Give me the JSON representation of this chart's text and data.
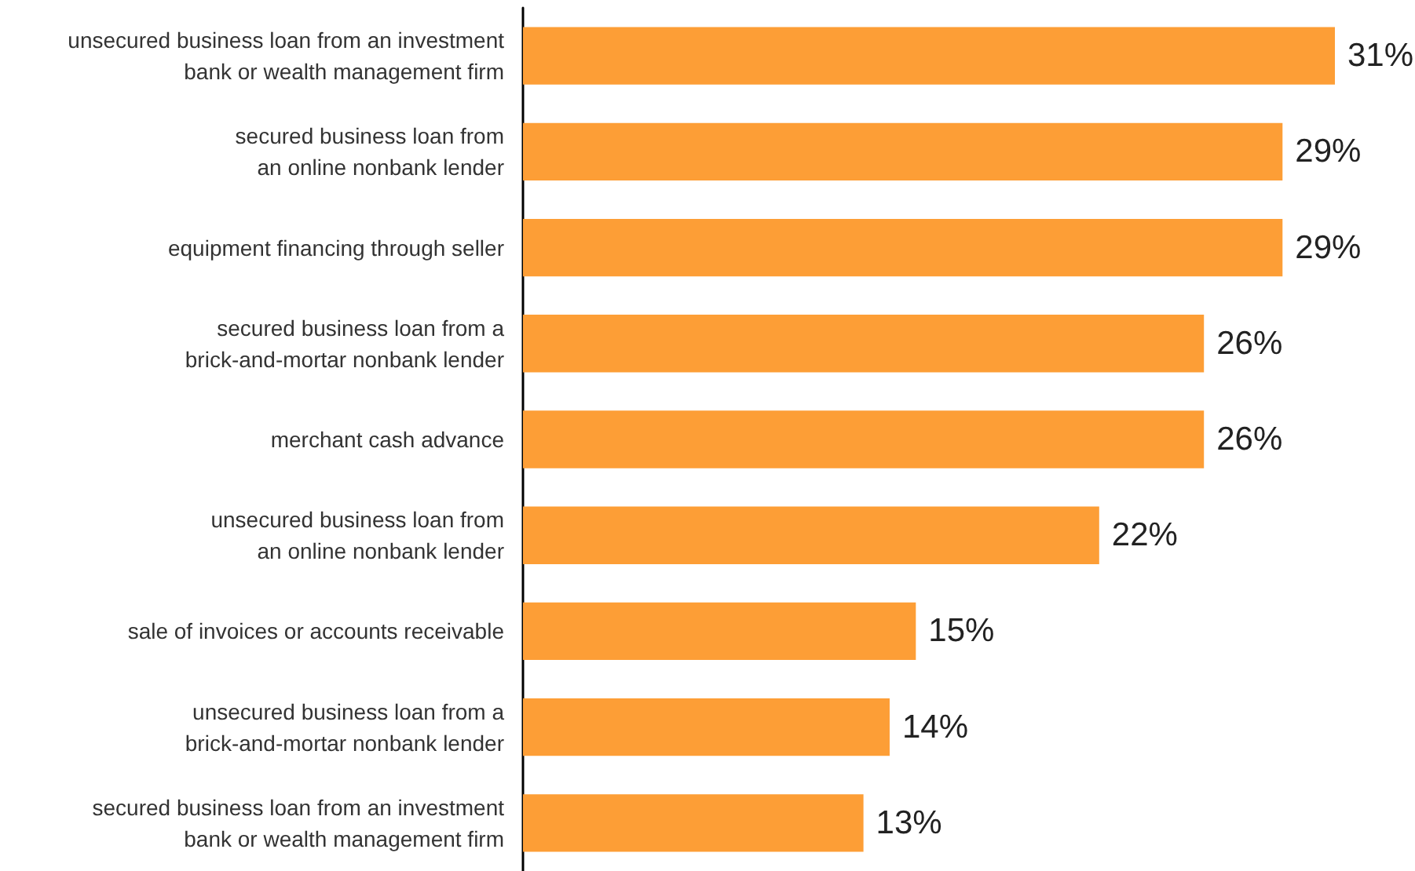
{
  "chart_data": {
    "type": "bar",
    "orientation": "horizontal",
    "categories": [
      "unsecured business loan from an investment\nbank or wealth management firm",
      "secured business loan from\nan online nonbank lender",
      "equipment financing through seller",
      "secured business loan from a\nbrick-and-mortar nonbank lender",
      "merchant cash advance",
      "unsecured business loan from\nan online nonbank lender",
      "sale of invoices or accounts receivable",
      "unsecured business loan from a\nbrick-and-mortar nonbank lender",
      "secured business loan from an investment\nbank or wealth management firm"
    ],
    "values": [
      31,
      29,
      29,
      26,
      26,
      22,
      15,
      14,
      13
    ],
    "value_labels": [
      "31%",
      "29%",
      "29%",
      "26%",
      "26%",
      "22%",
      "15%",
      "14%",
      "13%"
    ],
    "color": "#fd9e36"
  }
}
